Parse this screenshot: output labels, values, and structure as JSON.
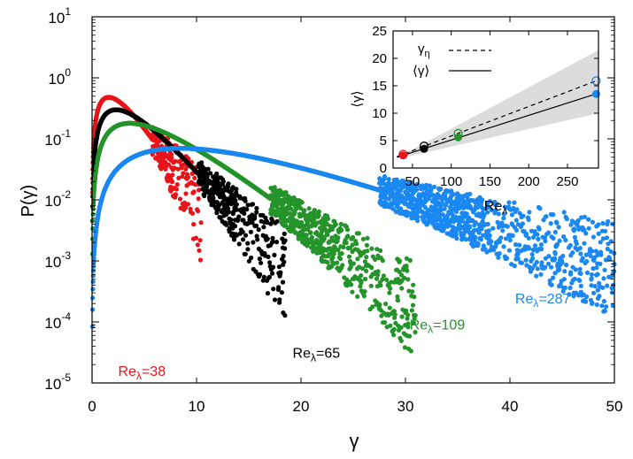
{
  "chart_data": [
    {
      "type": "scatter",
      "ylabel": "P(γ)",
      "xlabel": "γ",
      "xlim": [
        0,
        50
      ],
      "ylim_log10": [
        -5,
        1
      ],
      "log_y": true,
      "xticks": [
        "0",
        "10",
        "20",
        "30",
        "40",
        "50"
      ],
      "yticks": [
        {
          "base": "10",
          "exp": "1",
          "v": 1
        },
        {
          "base": "10",
          "exp": "0",
          "v": 0
        },
        {
          "base": "10",
          "exp": "-1",
          "v": -1
        },
        {
          "base": "10",
          "exp": "-2",
          "v": -2
        },
        {
          "base": "10",
          "exp": "-3",
          "v": -3
        },
        {
          "base": "10",
          "exp": "-4",
          "v": -4
        },
        {
          "base": "10",
          "exp": "-5",
          "v": -5
        }
      ],
      "series": [
        {
          "name_base": "Re",
          "name_sub": "λ",
          "name_val": "=38",
          "color": "#e8141a",
          "peak_x": 1.6,
          "peak_y": 0.48,
          "x_end": 10.5,
          "label_x": 2.5,
          "label_y": 1.3e-05
        },
        {
          "name_base": "Re",
          "name_sub": "λ",
          "name_val": "=65",
          "color": "#000000",
          "peak_x": 2.3,
          "peak_y": 0.3,
          "x_end": 18.5,
          "label_x": 19.2,
          "label_y": 2.6e-05
        },
        {
          "name_base": "Re",
          "name_sub": "λ",
          "name_val": "=109",
          "color": "#24942a",
          "peak_x": 3.6,
          "peak_y": 0.18,
          "x_end": 31,
          "label_x": 30.4,
          "label_y": 7.5e-05
        },
        {
          "name_base": "Re",
          "name_sub": "λ",
          "name_val": "=287",
          "color": "#1a88f0",
          "peak_x": 8.4,
          "peak_y": 0.07,
          "x_end": 50,
          "label_x": 40.5,
          "label_y": 0.0002
        }
      ]
    },
    {
      "type": "line",
      "xlabel_base": "Re",
      "xlabel_sub": "λ",
      "ylabel": "⟨γ⟩",
      "xlim": [
        25,
        290
      ],
      "ylim": [
        0,
        25
      ],
      "xticks": [
        "50",
        "100",
        "150",
        "200",
        "250"
      ],
      "yticks": [
        "0",
        "5",
        "10",
        "15",
        "20",
        "25"
      ],
      "legend": [
        {
          "label_base": "γ",
          "label_sub": "η",
          "style": "dashed"
        },
        {
          "label": "⟨γ⟩",
          "style": "solid"
        }
      ],
      "band": {
        "lower_at_25": 1.5,
        "upper_at_25": 1.5,
        "lower_at_290": 10.0,
        "upper_at_290": 21.5
      },
      "gamma_eta": {
        "x": [
          38,
          65,
          109,
          287
        ],
        "y": [
          2.5,
          4.0,
          6.3,
          15.9
        ]
      },
      "gamma_mean": {
        "x": [
          38,
          65,
          109,
          287
        ],
        "y": [
          2.3,
          3.5,
          5.6,
          13.5
        ]
      },
      "point_colors": [
        "#e8141a",
        "#000000",
        "#24942a",
        "#1a88f0"
      ]
    }
  ]
}
